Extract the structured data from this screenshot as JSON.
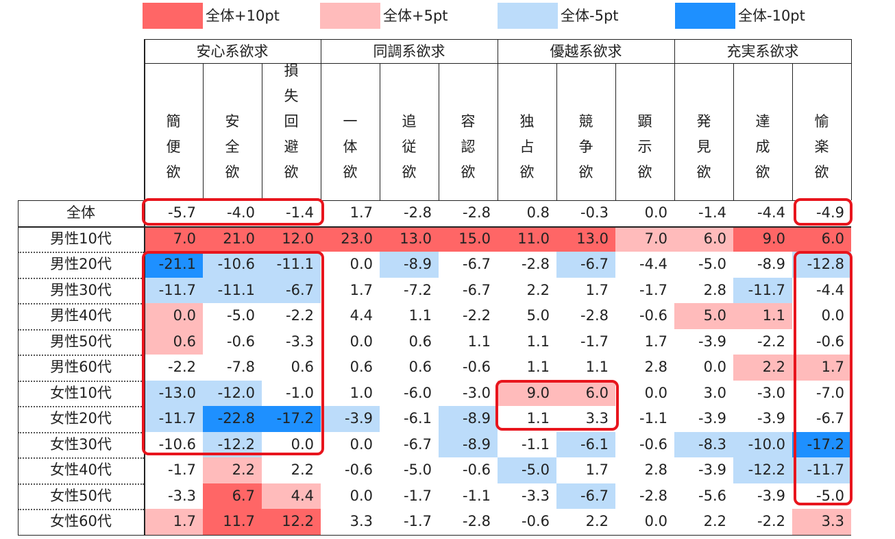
{
  "colors": {
    "plus10": "#ff6666",
    "plus5": "#ffbbbb",
    "minus5": "#bcdcfa",
    "minus10": "#1e90ff"
  },
  "legend": [
    {
      "label": "全体+10pt",
      "key": "plus10"
    },
    {
      "label": "全体+5pt",
      "key": "plus5"
    },
    {
      "label": "全体-5pt",
      "key": "minus5"
    },
    {
      "label": "全体-10pt",
      "key": "minus10"
    }
  ],
  "groups": [
    {
      "name": "安心系欲求",
      "span": 3
    },
    {
      "name": "同調系欲求",
      "span": 3
    },
    {
      "name": "優越系欲求",
      "span": 3
    },
    {
      "name": "充実系欲求",
      "span": 3
    }
  ],
  "columns": [
    "簡便欲",
    "安全欲",
    "損失回避欲",
    "一体欲",
    "追従欲",
    "容認欲",
    "独占欲",
    "競争欲",
    "顕示欲",
    "発見欲",
    "達成欲",
    "愉楽欲"
  ],
  "rows": [
    {
      "label": "全体",
      "values": [
        "-5.7",
        "-4.0",
        "-1.4",
        "1.7",
        "-2.8",
        "-2.8",
        "0.8",
        "-0.3",
        "0.0",
        "-1.4",
        "-4.4",
        "-4.9"
      ],
      "fills": [
        null,
        null,
        null,
        null,
        null,
        null,
        null,
        null,
        null,
        null,
        null,
        null
      ]
    },
    {
      "label": "男性10代",
      "values": [
        "7.0",
        "21.0",
        "12.0",
        "23.0",
        "13.0",
        "15.0",
        "11.0",
        "13.0",
        "7.0",
        "6.0",
        "9.0",
        "6.0"
      ],
      "fills": [
        "plus10",
        "plus10",
        "plus10",
        "plus10",
        "plus10",
        "plus10",
        "plus10",
        "plus10",
        "plus5",
        "plus5",
        "plus10",
        "plus10"
      ]
    },
    {
      "label": "男性20代",
      "values": [
        "-21.1",
        "-10.6",
        "-11.1",
        "0.0",
        "-8.9",
        "-6.7",
        "-2.8",
        "-6.7",
        "-4.4",
        "-5.0",
        "-8.9",
        "-12.8"
      ],
      "fills": [
        "minus10",
        "minus5",
        "minus5",
        null,
        "minus5",
        null,
        null,
        "minus5",
        null,
        null,
        null,
        "minus5"
      ]
    },
    {
      "label": "男性30代",
      "values": [
        "-11.7",
        "-11.1",
        "-6.7",
        "1.7",
        "-7.2",
        "-6.7",
        "2.2",
        "1.7",
        "-1.7",
        "2.8",
        "-11.7",
        "-4.4"
      ],
      "fills": [
        "minus5",
        "minus5",
        "minus5",
        null,
        null,
        null,
        null,
        null,
        null,
        null,
        "minus5",
        null
      ]
    },
    {
      "label": "男性40代",
      "values": [
        "0.0",
        "-5.0",
        "-2.2",
        "4.4",
        "1.1",
        "-2.2",
        "5.0",
        "-2.8",
        "-0.6",
        "5.0",
        "1.1",
        "0.0"
      ],
      "fills": [
        "plus5",
        null,
        null,
        null,
        null,
        null,
        null,
        null,
        null,
        "plus5",
        "plus5",
        null
      ]
    },
    {
      "label": "男性50代",
      "values": [
        "0.6",
        "-0.6",
        "-3.3",
        "0.0",
        "0.6",
        "1.1",
        "1.1",
        "-1.7",
        "1.7",
        "-3.9",
        "-2.2",
        "-0.6"
      ],
      "fills": [
        "plus5",
        null,
        null,
        null,
        null,
        null,
        null,
        null,
        null,
        null,
        null,
        null
      ]
    },
    {
      "label": "男性60代",
      "values": [
        "-2.2",
        "-7.8",
        "0.6",
        "0.6",
        "0.6",
        "-0.6",
        "1.1",
        "1.1",
        "2.8",
        "0.0",
        "2.2",
        "1.7"
      ],
      "fills": [
        null,
        null,
        null,
        null,
        null,
        null,
        null,
        null,
        null,
        null,
        "plus5",
        "plus5"
      ]
    },
    {
      "label": "女性10代",
      "values": [
        "-13.0",
        "-12.0",
        "-1.0",
        "1.0",
        "-6.0",
        "-3.0",
        "9.0",
        "6.0",
        "0.0",
        "3.0",
        "-3.0",
        "-7.0"
      ],
      "fills": [
        "minus5",
        "minus5",
        null,
        null,
        null,
        null,
        "plus5",
        "plus5",
        null,
        null,
        null,
        null
      ]
    },
    {
      "label": "女性20代",
      "values": [
        "-11.7",
        "-22.8",
        "-17.2",
        "-3.9",
        "-6.1",
        "-8.9",
        "1.1",
        "3.3",
        "-1.1",
        "-3.9",
        "-3.9",
        "-6.7"
      ],
      "fills": [
        "minus5",
        "minus10",
        "minus10",
        "minus5",
        null,
        "minus5",
        null,
        null,
        null,
        null,
        null,
        null
      ]
    },
    {
      "label": "女性30代",
      "values": [
        "-10.6",
        "-12.2",
        "0.0",
        "0.0",
        "-6.7",
        "-8.9",
        "-1.1",
        "-6.1",
        "-0.6",
        "-8.3",
        "-10.0",
        "-17.2"
      ],
      "fills": [
        null,
        "minus5",
        null,
        null,
        null,
        "minus5",
        null,
        "minus5",
        null,
        "minus5",
        "minus5",
        "minus10"
      ]
    },
    {
      "label": "女性40代",
      "values": [
        "-1.7",
        "2.2",
        "2.2",
        "-0.6",
        "-5.0",
        "-0.6",
        "-5.0",
        "1.7",
        "2.8",
        "-3.9",
        "-12.2",
        "-11.7"
      ],
      "fills": [
        null,
        "plus5",
        null,
        null,
        null,
        null,
        "minus5",
        null,
        null,
        null,
        "minus5",
        "minus5"
      ]
    },
    {
      "label": "女性50代",
      "values": [
        "-3.3",
        "6.7",
        "4.4",
        "0.0",
        "-1.7",
        "-1.1",
        "-3.3",
        "-6.7",
        "-2.8",
        "-5.6",
        "-3.9",
        "-5.0"
      ],
      "fills": [
        null,
        "plus10",
        "plus5",
        null,
        null,
        null,
        null,
        "minus5",
        null,
        null,
        null,
        null
      ]
    },
    {
      "label": "女性60代",
      "values": [
        "1.7",
        "11.7",
        "12.2",
        "3.3",
        "-1.7",
        "-2.8",
        "-0.6",
        "2.2",
        "0.0",
        "2.2",
        "-2.2",
        "3.3"
      ],
      "fills": [
        "plus5",
        "plus10",
        "plus10",
        null,
        null,
        null,
        null,
        null,
        null,
        null,
        null,
        "plus5"
      ]
    }
  ]
}
